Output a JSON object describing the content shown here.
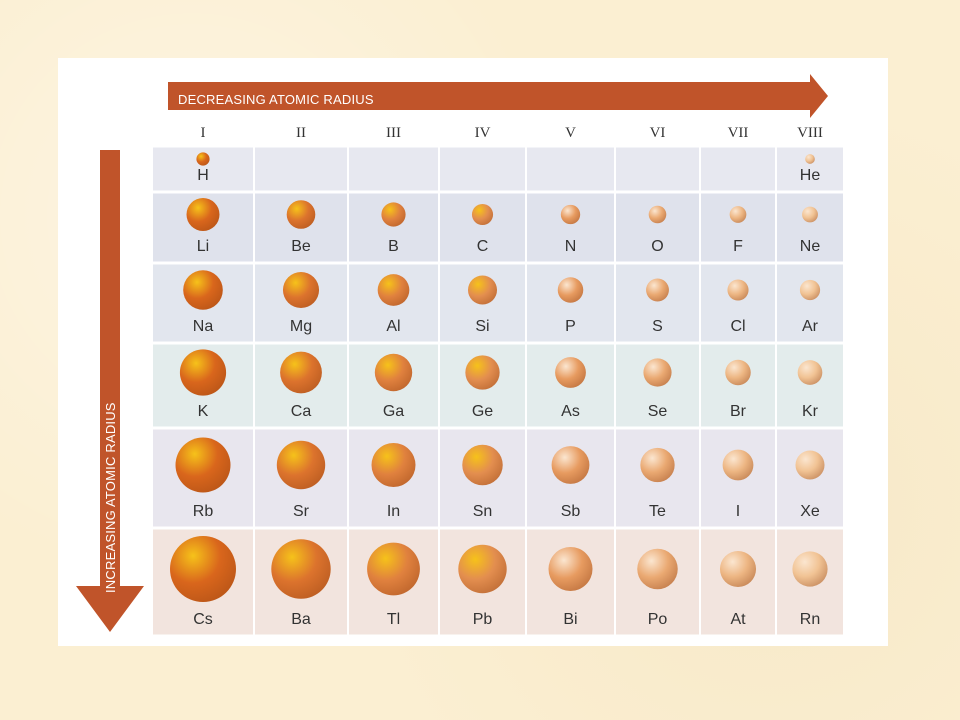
{
  "horizontal_arrow_label": "DECREASING ATOMIC RADIUS",
  "vertical_arrow_label": "INCREASING ATOMIC RADIUS",
  "groups": [
    "I",
    "II",
    "III",
    "IV",
    "V",
    "VI",
    "VII",
    "VIII"
  ],
  "periods": [
    [
      "H",
      "",
      "",
      "",
      "",
      "",
      "",
      "He"
    ],
    [
      "Li",
      "Be",
      "B",
      "C",
      "N",
      "O",
      "F",
      "Ne"
    ],
    [
      "Na",
      "Mg",
      "Al",
      "Si",
      "P",
      "S",
      "Cl",
      "Ar"
    ],
    [
      "K",
      "Ca",
      "Ga",
      "Ge",
      "As",
      "Se",
      "Br",
      "Kr"
    ],
    [
      "Rb",
      "Sr",
      "In",
      "Sn",
      "Sb",
      "Te",
      "I",
      "Xe"
    ],
    [
      "Cs",
      "Ba",
      "Tl",
      "Pb",
      "Bi",
      "Po",
      "At",
      "Rn"
    ]
  ],
  "relative_radius": [
    [
      0.3,
      0,
      0,
      0,
      0,
      0,
      0,
      0.22
    ],
    [
      0.75,
      0.65,
      0.55,
      0.48,
      0.44,
      0.4,
      0.38,
      0.36
    ],
    [
      0.9,
      0.82,
      0.72,
      0.66,
      0.58,
      0.52,
      0.48,
      0.46
    ],
    [
      1.05,
      0.95,
      0.85,
      0.78,
      0.7,
      0.64,
      0.58,
      0.56
    ],
    [
      1.25,
      1.1,
      1.0,
      0.92,
      0.86,
      0.78,
      0.7,
      0.66
    ],
    [
      1.5,
      1.35,
      1.2,
      1.1,
      1.0,
      0.92,
      0.82,
      0.8
    ]
  ],
  "colors": {
    "arrow": "#c0542a",
    "row_fills": [
      "#e7e8f0",
      "#dfe2ec",
      "#e2e6ee",
      "#e3ecec",
      "#e8e6ee",
      "#f2e4de"
    ],
    "grid_line": "#ffffff",
    "sphere_dark": "#d9661c",
    "sphere_light": "#f2c89a",
    "highlight_warm": "#f6c21a",
    "highlight_pale": "#fbe6d0"
  }
}
